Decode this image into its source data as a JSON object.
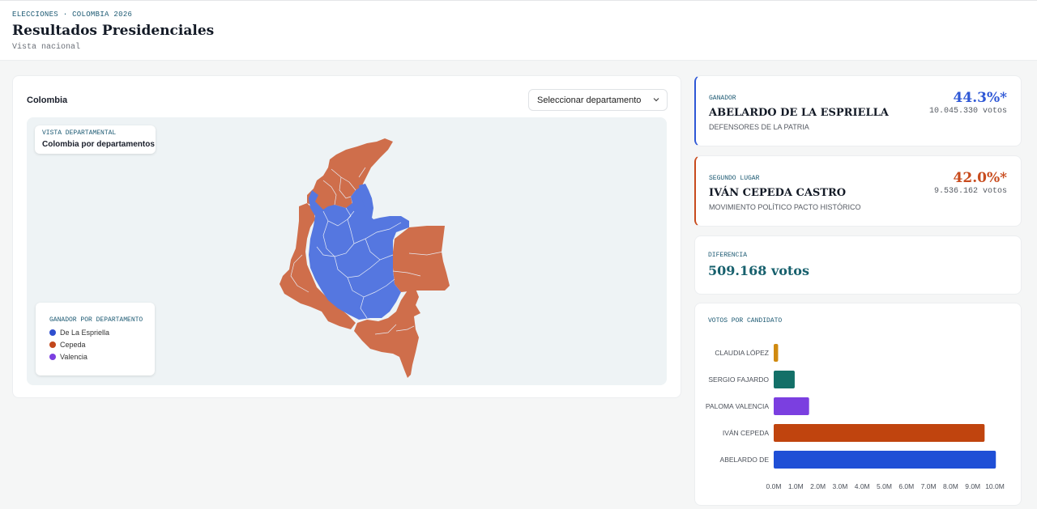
{
  "header": {
    "eyebrow": "ELECCIONES · COLOMBIA 2026",
    "title": "Resultados Presidenciales",
    "subtitle": "Vista nacional"
  },
  "map_panel": {
    "heading": "Colombia",
    "select_value": "Seleccionar departamento",
    "vista_eyebrow": "VISTA DEPARTAMENTAL",
    "vista_title": "Colombia por departamentos",
    "legend": {
      "title": "GANADOR POR DEPARTAMENTO",
      "items": [
        {
          "label": "De La Espriella",
          "color": "#2f4fcf"
        },
        {
          "label": "Cepeda",
          "color": "#c2471c"
        },
        {
          "label": "Valencia",
          "color": "#7b3fe0"
        }
      ]
    },
    "colors": {
      "espriella_fill": "#5577e0",
      "cepeda_fill": "#cf6e4b"
    }
  },
  "winner": {
    "eyebrow": "GANADOR",
    "name": "ABELARDO DE LA ESPRIELLA",
    "party": "DEFENSORES DE LA PATRIA",
    "pct": "44.3%*",
    "votes": "10.045.330 votos",
    "color": "#2f58d6"
  },
  "second": {
    "eyebrow": "SEGUNDO LUGAR",
    "name": "IVÁN CEPEDA CASTRO",
    "party": "MOVIMIENTO POLÍTICO PACTO HISTÓRICO",
    "pct": "42.0%*",
    "votes": "9.536.162 votos",
    "color": "#c84b1d"
  },
  "difference": {
    "eyebrow": "DIFERENCIA",
    "value": "509.168 votos"
  },
  "votes_panel": {
    "eyebrow": "VOTOS POR CANDIDATO"
  },
  "chart_data": {
    "type": "bar",
    "orientation": "horizontal",
    "categories": [
      "CLAUDIA LÓPEZ",
      "SERGIO FAJARDO",
      "PALOMA VALENCIA",
      "IVÁN CEPEDA",
      "ABELARDO DE"
    ],
    "values": [
      0.2,
      0.95,
      1.6,
      9.536162,
      10.04533
    ],
    "colors": [
      "#d08a10",
      "#137068",
      "#7b3fe0",
      "#c0440e",
      "#1f4fd6"
    ],
    "x_ticks": [
      "0.0M",
      "1.0M",
      "2.0M",
      "3.0M",
      "4.0M",
      "5.0M",
      "6.0M",
      "7.0M",
      "8.0M",
      "9.0M",
      "10.0M"
    ],
    "xlim": [
      0,
      10.0
    ],
    "grid": false,
    "legend": "none"
  }
}
